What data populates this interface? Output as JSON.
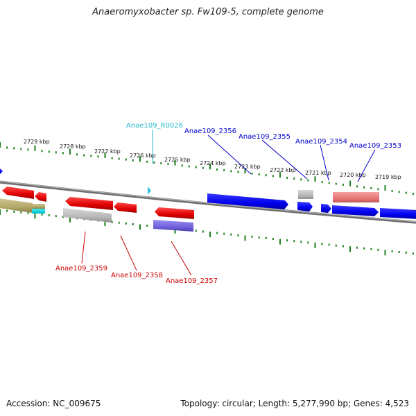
{
  "title": "Anaeromyxobacter sp. Fw109-5, complete genome",
  "footer": {
    "accession": "Accession: NC_009675",
    "topology": "Topology: circular; Length: 5,277,990 bp; Genes: 4,523"
  },
  "colors": {
    "tick": "#1a7f1a",
    "backbone": "#8c8c8c",
    "label_top": "#0000cc",
    "label_rna": "#22b8cc",
    "label_bottom": "#cc0000"
  },
  "scale_labels": [
    "2729 kbp",
    "2728 kbp",
    "2727 kbp",
    "2726 kbp",
    "2725 kbp",
    "2724 kbp",
    "2723 kbp",
    "2722 kbp",
    "2721 kbp",
    "2720 kbp",
    "2719 kbp"
  ],
  "gene_labels_top": [
    {
      "text": "Anae109_R0026",
      "kind": "rna"
    },
    {
      "text": "Anae109_2356",
      "kind": "top"
    },
    {
      "text": "Anae109_2355",
      "kind": "top"
    },
    {
      "text": "Anae109_2354",
      "kind": "top"
    },
    {
      "text": "Anae109_2353",
      "kind": "top"
    }
  ],
  "gene_labels_bottom": [
    {
      "text": "Anae109_2359"
    },
    {
      "text": "Anae109_2358"
    },
    {
      "text": "Anae109_2357"
    }
  ]
}
